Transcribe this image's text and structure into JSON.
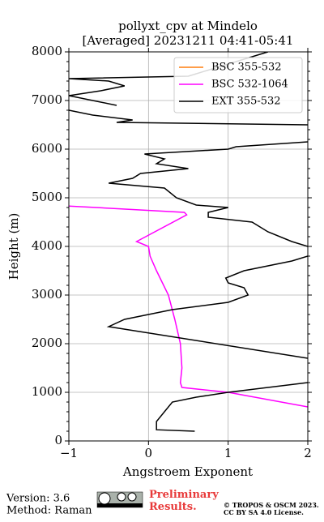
{
  "chart_data": {
    "type": "line",
    "title": "pollyxt_cpv at Mindelo",
    "subtitle": "[Averaged] 20231211 04:41-05:41",
    "x_label": "Angstroem Exponent",
    "y_label": "Height (m)",
    "xlim": [
      -1,
      2
    ],
    "ylim": [
      0,
      8000
    ],
    "xticks": [
      {
        "value": -1,
        "label": "−1"
      },
      0,
      1,
      2
    ],
    "yticks": [
      0,
      1000,
      2000,
      3000,
      4000,
      5000,
      6000,
      7000,
      8000
    ],
    "grid": true,
    "legend": "upper right",
    "series": [
      {
        "name": "BSC 355-532",
        "color": "#ff7f0e",
        "x": [],
        "values": []
      },
      {
        "name": "BSC 532-1064",
        "color": "#ff00ff",
        "x": [
          2.0,
          1.0,
          0.42,
          0.4,
          0.42,
          0.4,
          0.33,
          0.25,
          0.1,
          0.02,
          0.0,
          -0.15,
          0.48,
          0.45,
          -1.0
        ],
        "values": [
          700,
          1000,
          1100,
          1200,
          1500,
          2000,
          2500,
          3000,
          3500,
          3800,
          4000,
          4100,
          4650,
          4700,
          4830
        ]
      },
      {
        "name": "EXT 355-532",
        "color": "#000000",
        "x": [
          0.58,
          0.1,
          0.1,
          0.2,
          0.3,
          0.6,
          1.0,
          2.0,
          null,
          2.0,
          -0.5,
          -0.3,
          0.3,
          1.0,
          1.25,
          1.2,
          1.0,
          0.97,
          1.2,
          1.8,
          2.0,
          null,
          2.0,
          1.8,
          1.5,
          1.3,
          0.75,
          0.75,
          1.0,
          0.6,
          0.35,
          0.2,
          -0.5,
          -0.2,
          -0.1,
          0.5,
          0.1,
          0.2,
          -0.05,
          1.0,
          1.1,
          2.0,
          null,
          2.0,
          -0.4,
          -0.2,
          -0.7,
          -1.0,
          null,
          -0.4,
          -0.7,
          -1.0,
          -0.6,
          -0.3,
          -0.5,
          -1.0,
          0.5,
          1.1,
          1.5
        ],
        "values": [
          200,
          230,
          400,
          600,
          800,
          900,
          1000,
          1200,
          null,
          1700,
          2350,
          2500,
          2700,
          2850,
          3000,
          3150,
          3250,
          3350,
          3500,
          3700,
          3800,
          null,
          4000,
          4100,
          4300,
          4500,
          4600,
          4700,
          4800,
          4850,
          5000,
          5200,
          5300,
          5400,
          5500,
          5600,
          5700,
          5800,
          5900,
          6000,
          6050,
          6150,
          null,
          6500,
          6550,
          6600,
          6700,
          6800,
          null,
          6900,
          7000,
          7100,
          7200,
          7300,
          7400,
          7450,
          7500,
          7800,
          8000
        ]
      }
    ]
  },
  "footer": {
    "version": "Version: 3.6",
    "method": "Method: Raman",
    "notice": "Preliminary Results.",
    "copyright": "© TROPOS & OSCM 2023.",
    "license": "CC BY SA 4.0 License."
  }
}
